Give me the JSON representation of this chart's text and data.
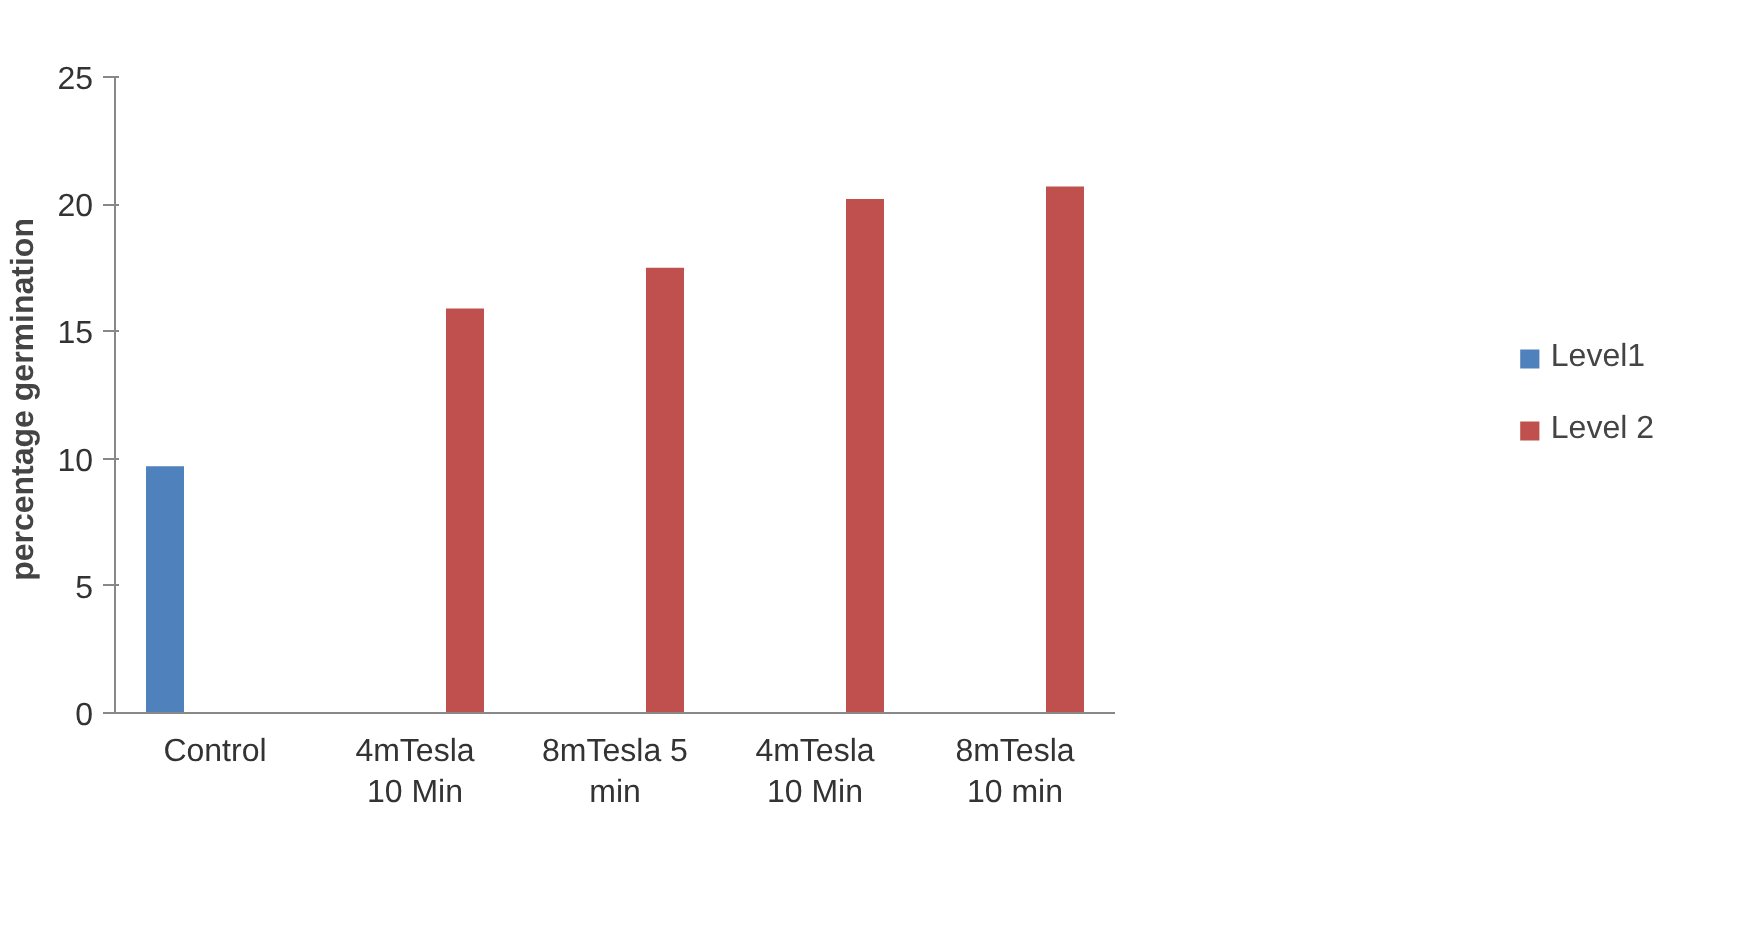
{
  "chart_data": {
    "type": "bar",
    "ylabel": "percentage  germination",
    "categories": [
      "Control",
      "4mTesla\n10 Min",
      "8mTesla 5\nmin",
      "4mTesla\n10 Min",
      "8mTesla\n10 min"
    ],
    "series": [
      {
        "name": "Level1",
        "color": "#4f81bd",
        "values": [
          9.7,
          null,
          null,
          null,
          null
        ]
      },
      {
        "name": "Level 2",
        "color": "#c0504d",
        "values": [
          null,
          15.9,
          17.5,
          20.2,
          20.7
        ]
      }
    ],
    "ylim": [
      0,
      25
    ],
    "yticks": [
      0,
      5,
      10,
      15,
      20,
      25
    ],
    "grid": false,
    "legend": "right"
  }
}
